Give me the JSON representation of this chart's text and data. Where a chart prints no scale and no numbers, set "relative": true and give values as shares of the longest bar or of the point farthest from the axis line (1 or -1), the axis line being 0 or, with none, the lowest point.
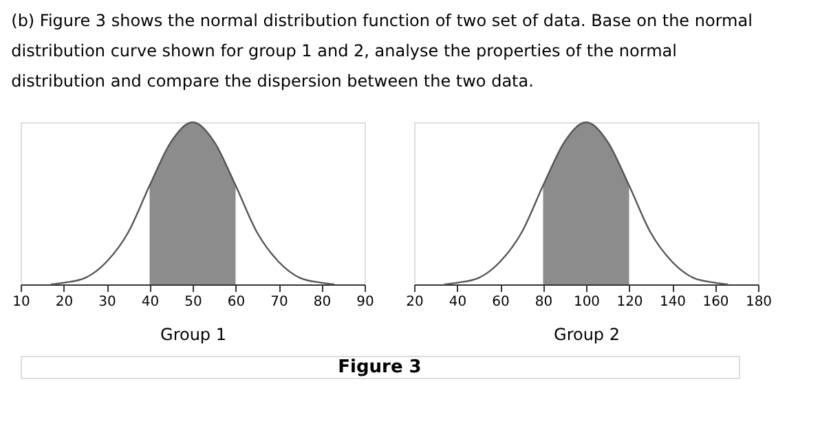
{
  "chart_data": [
    {
      "type": "line",
      "title": "(b) Figure 3 shows the normal distribution function of two set of data. Base on the normal distribution curve shown for group 1 and 2, analyse the properties of the normal distribution and compare the dispersion between the two data.",
      "xlabel": "Group 1",
      "annotations": [
        "Figure 3"
      ],
      "relative": true,
      "color": "#555555",
      "x": [
        17,
        20,
        25,
        30,
        35,
        40,
        45,
        50,
        55,
        60,
        65,
        70,
        75,
        80,
        83
      ],
      "values": [
        0,
        0.01,
        0.04,
        0.14,
        0.32,
        0.61,
        0.88,
        1,
        0.88,
        0.61,
        0.32,
        0.14,
        0.04,
        0.01,
        0
      ],
      "xlim": [
        10,
        90
      ],
      "xticks": [
        10,
        20,
        30,
        40,
        50,
        60,
        70,
        80,
        90
      ],
      "bands": [
        {
          "axis": "x",
          "from": 40,
          "to": 60,
          "color": "#8c8c8c"
        }
      ]
    },
    {
      "type": "line",
      "xlabel": "Group 2",
      "relative": true,
      "color": "#555555",
      "x": [
        34,
        40,
        50,
        60,
        70,
        80,
        90,
        100,
        110,
        120,
        130,
        140,
        150,
        160,
        166
      ],
      "values": [
        0,
        0.01,
        0.04,
        0.14,
        0.32,
        0.61,
        0.88,
        1,
        0.88,
        0.61,
        0.32,
        0.14,
        0.04,
        0.01,
        0
      ],
      "xlim": [
        20,
        180
      ],
      "xticks": [
        20,
        40,
        60,
        80,
        100,
        120,
        140,
        160,
        180
      ],
      "bands": [
        {
          "axis": "x",
          "from": 80,
          "to": 120,
          "color": "#8c8c8c"
        }
      ]
    }
  ]
}
